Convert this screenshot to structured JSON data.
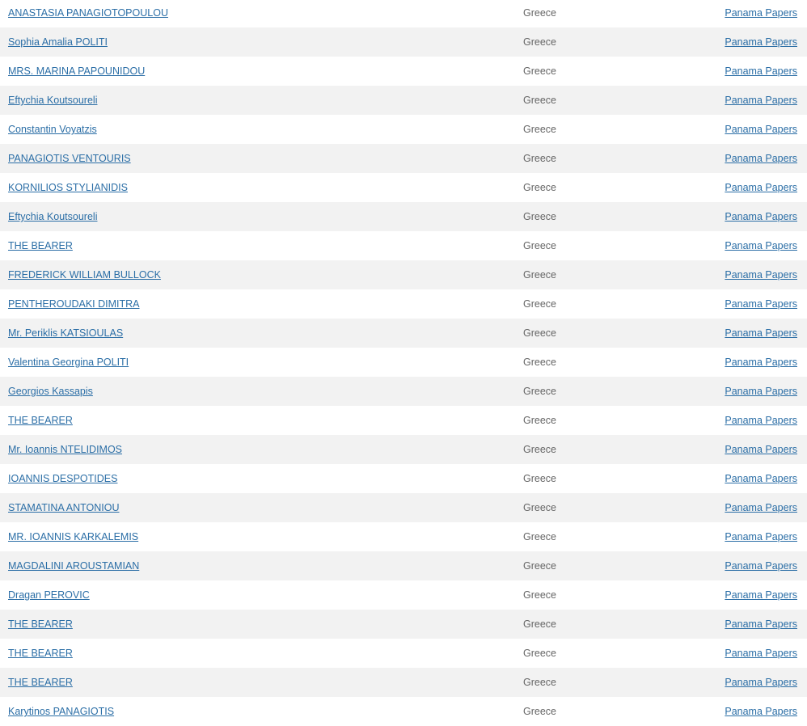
{
  "colors": {
    "link": "#2b6ea6",
    "text": "#666666",
    "stripe": "#f2f2f2"
  },
  "rows": [
    {
      "name": "ANASTASIA PANAGIOTOPOULOU",
      "country": "Greece",
      "source": "Panama Papers"
    },
    {
      "name": "Sophia Amalia POLITI",
      "country": "Greece",
      "source": "Panama Papers"
    },
    {
      "name": "MRS. MARINA PAPOUNIDOU",
      "country": "Greece",
      "source": "Panama Papers"
    },
    {
      "name": "Eftychia Koutsoureli",
      "country": "Greece",
      "source": "Panama Papers"
    },
    {
      "name": "Constantin Voyatzis",
      "country": "Greece",
      "source": "Panama Papers"
    },
    {
      "name": "PANAGIOTIS VENTOURIS",
      "country": "Greece",
      "source": "Panama Papers"
    },
    {
      "name": "KORNILIOS STYLIANIDIS",
      "country": "Greece",
      "source": "Panama Papers"
    },
    {
      "name": "Eftychia Koutsoureli",
      "country": "Greece",
      "source": "Panama Papers"
    },
    {
      "name": "THE BEARER",
      "country": "Greece",
      "source": "Panama Papers"
    },
    {
      "name": "FREDERICK WILLIAM BULLOCK",
      "country": "Greece",
      "source": "Panama Papers"
    },
    {
      "name": "PENTHEROUDAKI DIMITRA",
      "country": "Greece",
      "source": "Panama Papers"
    },
    {
      "name": "Mr. Periklis KATSIOULAS",
      "country": "Greece",
      "source": "Panama Papers"
    },
    {
      "name": "Valentina Georgina POLITI",
      "country": "Greece",
      "source": "Panama Papers"
    },
    {
      "name": "Georgios Kassapis",
      "country": "Greece",
      "source": "Panama Papers"
    },
    {
      "name": "THE BEARER",
      "country": "Greece",
      "source": "Panama Papers"
    },
    {
      "name": "Mr. Ioannis NTELIDIMOS",
      "country": "Greece",
      "source": "Panama Papers"
    },
    {
      "name": "IOANNIS DESPOTIDES",
      "country": "Greece",
      "source": "Panama Papers"
    },
    {
      "name": "STAMATINA ANTONIOU",
      "country": "Greece",
      "source": "Panama Papers"
    },
    {
      "name": "MR. IOANNIS KARKALEMIS",
      "country": "Greece",
      "source": "Panama Papers"
    },
    {
      "name": "MAGDALINI AROUSTAMIAN",
      "country": "Greece",
      "source": "Panama Papers"
    },
    {
      "name": "Dragan PEROVIC",
      "country": "Greece",
      "source": "Panama Papers"
    },
    {
      "name": "THE BEARER",
      "country": "Greece",
      "source": "Panama Papers"
    },
    {
      "name": "THE BEARER",
      "country": "Greece",
      "source": "Panama Papers"
    },
    {
      "name": "THE BEARER",
      "country": "Greece",
      "source": "Panama Papers"
    },
    {
      "name": "Karytinos PANAGIOTIS",
      "country": "Greece",
      "source": "Panama Papers"
    }
  ]
}
